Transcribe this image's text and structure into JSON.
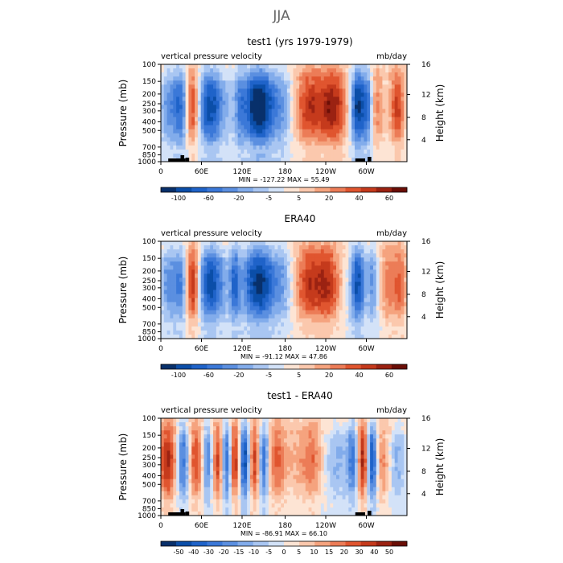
{
  "page": {
    "season": "JJA"
  },
  "colors": {
    "scale": [
      "#08306b",
      "#0b4ea8",
      "#1f63c9",
      "#3b78d8",
      "#5b8fe0",
      "#82aceb",
      "#a9c6f2",
      "#d3e2f8",
      "#fde4d4",
      "#fbc8ad",
      "#f5a37e",
      "#ec7c57",
      "#e0552f",
      "#c53a1c",
      "#9b2212",
      "#6a0e06"
    ]
  },
  "chart_data": [
    {
      "type": "heatmap",
      "title": "test1 (yrs 1979-1979)",
      "variable_label": "vertical pressure velocity",
      "units_label": "mb/day",
      "ylabel_left": "Pressure (mb)",
      "ylabel_right": "Height (km)",
      "x_tick_labels": [
        "0",
        "60E",
        "120E",
        "180",
        "120W",
        "60W"
      ],
      "y_left_ticks": [
        "100",
        "150",
        "200",
        "250",
        "300",
        "400",
        "500",
        "700",
        "850",
        "1000"
      ],
      "y_right_ticks": [
        "16",
        "12",
        "8",
        "4"
      ],
      "stats_text": "MIN = -127.22   MAX =  55.49",
      "min": -127.22,
      "max": 55.49,
      "colorbar_labels": [
        "-100",
        "-60",
        "-20",
        "-5",
        "5",
        "20",
        "40",
        "60"
      ],
      "topography": true
    },
    {
      "type": "heatmap",
      "title": "ERA40",
      "variable_label": "vertical pressure velocity",
      "units_label": "mb/day",
      "ylabel_left": "Pressure (mb)",
      "ylabel_right": "Height (km)",
      "x_tick_labels": [
        "0",
        "60E",
        "120E",
        "180",
        "120W",
        "60W"
      ],
      "y_left_ticks": [
        "100",
        "150",
        "200",
        "250",
        "300",
        "400",
        "500",
        "700",
        "850",
        "1000"
      ],
      "y_right_ticks": [
        "16",
        "12",
        "8",
        "4"
      ],
      "stats_text": "MIN = -91.12   MAX =  47.86",
      "min": -91.12,
      "max": 47.86,
      "colorbar_labels": [
        "-100",
        "-60",
        "-20",
        "-5",
        "5",
        "20",
        "40",
        "60"
      ],
      "topography": false
    },
    {
      "type": "heatmap",
      "title": "test1 - ERA40",
      "variable_label": "vertical pressure velocity",
      "units_label": "mb/day",
      "ylabel_left": "Pressure (mb)",
      "ylabel_right": "Height (km)",
      "x_tick_labels": [
        "0",
        "60E",
        "120E",
        "180",
        "120W",
        "60W"
      ],
      "y_left_ticks": [
        "100",
        "150",
        "200",
        "250",
        "300",
        "400",
        "500",
        "700",
        "850",
        "1000"
      ],
      "y_right_ticks": [
        "16",
        "12",
        "8",
        "4"
      ],
      "stats_text": "MIN = -86.91   MAX =  66.10",
      "min": -86.91,
      "max": 66.1,
      "colorbar_labels": [
        "-50",
        "-40",
        "-30",
        "-20",
        "-15",
        "-10",
        "-5",
        "0",
        "5",
        "10",
        "15",
        "20",
        "30",
        "40",
        "50"
      ],
      "topography": true
    }
  ]
}
